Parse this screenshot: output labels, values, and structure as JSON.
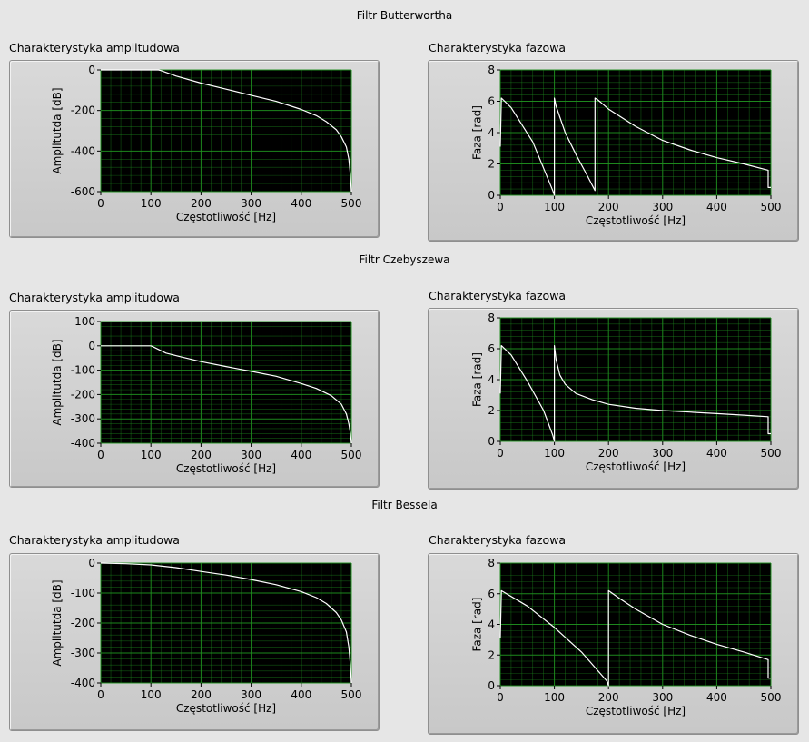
{
  "sections": [
    {
      "title": "Filtr Butterwortha"
    },
    {
      "title": "Filtr Czebyszewa"
    },
    {
      "title": "Filtr Bessela"
    }
  ],
  "chart_data": [
    {
      "type": "line",
      "title": "Charakterystyka amplitudowa",
      "xlabel": "Częstotliwość [Hz]",
      "ylabel": "Amplitutda [dB]",
      "xlim": [
        0,
        500
      ],
      "ylim": [
        -600,
        0
      ],
      "xticks": [
        0,
        100,
        200,
        300,
        400,
        500
      ],
      "yticks": [
        0,
        -200,
        -400,
        -600
      ],
      "grid": true,
      "line_color": "#ffffff",
      "plot_bg": "#000000",
      "grid_color": "#1f8f1f",
      "series": [
        {
          "x": [
            0,
            115,
            120,
            150,
            200,
            250,
            300,
            350,
            400,
            430,
            450,
            470,
            480,
            490,
            495,
            498,
            500
          ],
          "y": [
            0,
            0,
            -3,
            -30,
            -65,
            -95,
            -125,
            -155,
            -195,
            -225,
            -255,
            -295,
            -330,
            -380,
            -440,
            -520,
            -600
          ]
        }
      ]
    },
    {
      "type": "line",
      "title": "Charakterystyka fazowa",
      "xlabel": "Częstotliwość [Hz]",
      "ylabel": "Faza [rad]",
      "xlim": [
        0,
        500
      ],
      "ylim": [
        0,
        8
      ],
      "xticks": [
        0,
        100,
        200,
        300,
        400,
        500
      ],
      "yticks": [
        0,
        2,
        4,
        6,
        8
      ],
      "grid": true,
      "line_color": "#ffffff",
      "plot_bg": "#000000",
      "grid_color": "#1f8f1f",
      "series": [
        {
          "x": [
            0,
            2,
            20,
            60,
            97,
            100,
            100,
            103,
            120,
            140,
            160,
            175,
            175,
            180,
            200,
            250,
            300,
            350,
            400,
            450,
            495,
            495,
            500
          ],
          "y": [
            3.1,
            6.2,
            5.6,
            3.4,
            0.3,
            0,
            6.2,
            5.7,
            4.0,
            2.6,
            1.3,
            0.3,
            6.2,
            6.1,
            5.5,
            4.4,
            3.5,
            2.9,
            2.4,
            2.0,
            1.6,
            0.5,
            0.5
          ]
        }
      ]
    },
    {
      "type": "line",
      "title": "Charakterystyka amplitudowa",
      "xlabel": "Częstotliwość [Hz]",
      "ylabel": "Amplitutda [dB]",
      "xlim": [
        0,
        500
      ],
      "ylim": [
        -400,
        100
      ],
      "xticks": [
        0,
        100,
        200,
        300,
        400,
        500
      ],
      "yticks": [
        100,
        0,
        -100,
        -200,
        -300,
        -400
      ],
      "grid": true,
      "line_color": "#ffffff",
      "plot_bg": "#000000",
      "grid_color": "#1f8f1f",
      "series": [
        {
          "x": [
            0,
            100,
            105,
            130,
            160,
            200,
            250,
            300,
            350,
            400,
            430,
            460,
            480,
            490,
            495,
            498,
            500
          ],
          "y": [
            0,
            0,
            -5,
            -30,
            -45,
            -65,
            -85,
            -105,
            -125,
            -155,
            -175,
            -205,
            -240,
            -280,
            -320,
            -360,
            -400
          ]
        }
      ]
    },
    {
      "type": "line",
      "title": "Charakterystyka fazowa",
      "xlabel": "Częstotliwość [Hz]",
      "ylabel": "Faza [rad]",
      "xlim": [
        0,
        500
      ],
      "ylim": [
        0,
        8
      ],
      "xticks": [
        0,
        100,
        200,
        300,
        400,
        500
      ],
      "yticks": [
        0,
        2,
        4,
        6,
        8
      ],
      "grid": true,
      "line_color": "#ffffff",
      "plot_bg": "#000000",
      "grid_color": "#1f8f1f",
      "series": [
        {
          "x": [
            0,
            2,
            20,
            50,
            80,
            97,
            100,
            100,
            103,
            110,
            120,
            140,
            170,
            200,
            250,
            300,
            350,
            400,
            450,
            495,
            495,
            500
          ],
          "y": [
            3.1,
            6.2,
            5.6,
            3.9,
            2.0,
            0.4,
            0,
            6.2,
            5.3,
            4.3,
            3.7,
            3.1,
            2.7,
            2.4,
            2.15,
            2.0,
            1.9,
            1.8,
            1.7,
            1.6,
            0.5,
            0.5
          ]
        }
      ]
    },
    {
      "type": "line",
      "title": "Charakterystyka amplitudowa",
      "xlabel": "Częstotliwość [Hz]",
      "ylabel": "Amplitutda [dB]",
      "xlim": [
        0,
        500
      ],
      "ylim": [
        -400,
        0
      ],
      "xticks": [
        0,
        100,
        200,
        300,
        400,
        500
      ],
      "yticks": [
        0,
        -100,
        -200,
        -300,
        -400
      ],
      "grid": true,
      "line_color": "#ffffff",
      "plot_bg": "#000000",
      "grid_color": "#1f8f1f",
      "series": [
        {
          "x": [
            0,
            50,
            100,
            150,
            200,
            250,
            300,
            350,
            400,
            430,
            450,
            470,
            480,
            490,
            495,
            498,
            500
          ],
          "y": [
            0,
            -2,
            -6,
            -15,
            -28,
            -40,
            -55,
            -72,
            -95,
            -115,
            -135,
            -165,
            -190,
            -230,
            -280,
            -340,
            -400
          ]
        }
      ]
    },
    {
      "type": "line",
      "title": "Charakterystyka fazowa",
      "xlabel": "Częstotliwość [Hz]",
      "ylabel": "Faza [rad]",
      "xlim": [
        0,
        500
      ],
      "ylim": [
        0,
        8
      ],
      "xticks": [
        0,
        100,
        200,
        300,
        400,
        500
      ],
      "yticks": [
        0,
        2,
        4,
        6,
        8
      ],
      "grid": true,
      "line_color": "#ffffff",
      "plot_bg": "#000000",
      "grid_color": "#1f8f1f",
      "series": [
        {
          "x": [
            0,
            2,
            50,
            100,
            150,
            197,
            200,
            200,
            220,
            250,
            300,
            350,
            400,
            450,
            495,
            495,
            500
          ],
          "y": [
            3.1,
            6.2,
            5.2,
            3.8,
            2.2,
            0.3,
            0,
            6.2,
            5.7,
            5.0,
            4.0,
            3.3,
            2.7,
            2.2,
            1.7,
            0.5,
            0.5
          ]
        }
      ]
    }
  ]
}
